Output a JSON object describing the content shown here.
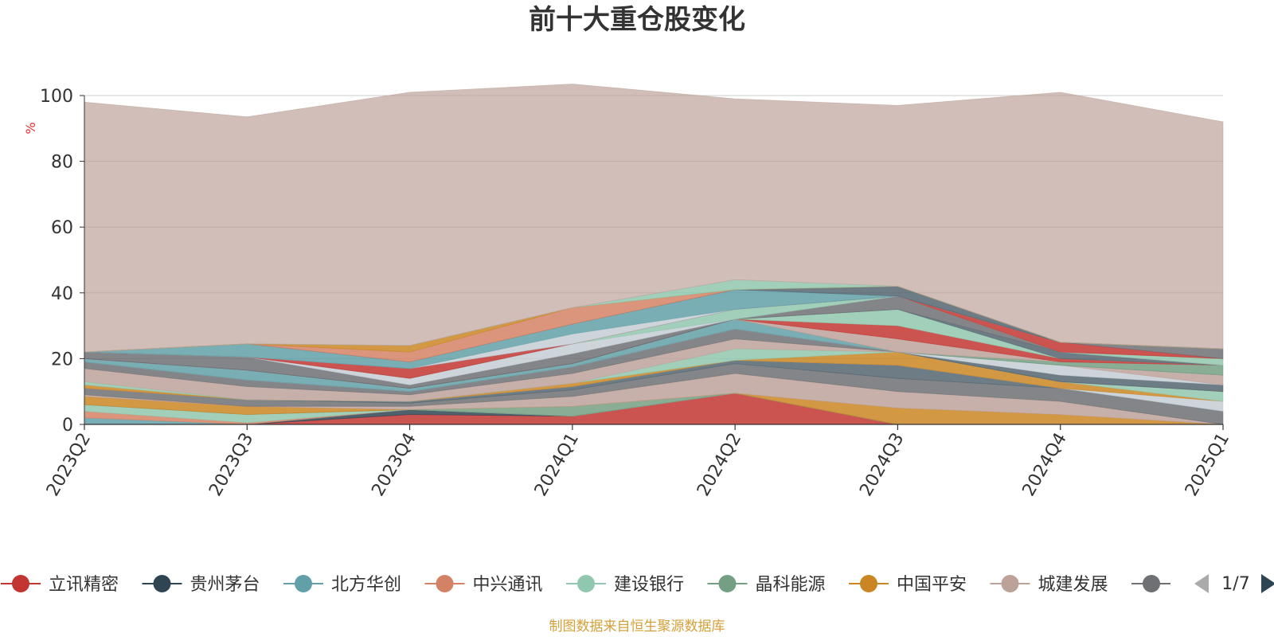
{
  "chart_data": {
    "type": "area",
    "stacked": true,
    "title": "前十大重仓股变化",
    "ylabel": "%",
    "ylim": [
      0,
      100
    ],
    "yticks": [
      0,
      20,
      40,
      60,
      80,
      100
    ],
    "categories": [
      "2023Q2",
      "2023Q3",
      "2023Q4",
      "2024Q1",
      "2024Q2",
      "2024Q3",
      "2024Q4",
      "2025Q1"
    ],
    "grid": true,
    "legend_position": "bottom",
    "series": [
      {
        "name": "立讯精密",
        "color": "#c23531",
        "values": [
          0,
          0,
          3,
          2.5,
          9.5,
          0,
          0,
          0
        ]
      },
      {
        "name": "贵州茅台",
        "color": "#2f4554",
        "values": [
          0,
          0,
          1.5,
          0,
          0,
          0,
          0,
          0
        ]
      },
      {
        "name": "北方华创",
        "color": "#61a0a8",
        "values": [
          2,
          0,
          0,
          0,
          0,
          0,
          0,
          0
        ]
      },
      {
        "name": "中兴通讯",
        "color": "#d48265",
        "values": [
          2,
          0.5,
          0,
          0,
          0,
          0,
          0,
          0
        ]
      },
      {
        "name": "建设银行",
        "color": "#91c7ae",
        "values": [
          2,
          2.5,
          0,
          0,
          0,
          0,
          0,
          0
        ]
      },
      {
        "name": "晶科能源",
        "color": "#749f83",
        "values": [
          0,
          0,
          0,
          3,
          0,
          0,
          0,
          0
        ]
      },
      {
        "name": "中国平安",
        "color": "#ca8622",
        "values": [
          2.5,
          2.5,
          0,
          0,
          0,
          5,
          3,
          0
        ]
      },
      {
        "name": "城建发展",
        "color": "#bda29a",
        "values": [
          0.5,
          0,
          1,
          3,
          6,
          5,
          4,
          0
        ]
      },
      {
        "name": "",
        "color": "#6e7074",
        "values": [
          2,
          2,
          1,
          2,
          3,
          4,
          4,
          4
        ]
      },
      {
        "name": "",
        "color": "#546570",
        "values": [
          0,
          0,
          0.5,
          1,
          1,
          4,
          0,
          0
        ]
      },
      {
        "name": "",
        "color": "#c4ccd3",
        "values": [
          0,
          0,
          0,
          0,
          0,
          0,
          0,
          3
        ]
      },
      {
        "name": "",
        "color": "#ca8622",
        "values": [
          1,
          0,
          0,
          1,
          0,
          4,
          2,
          0
        ]
      },
      {
        "name": "",
        "color": "#91c7ae",
        "values": [
          1,
          0,
          0,
          0,
          3.5,
          0,
          0,
          3
        ]
      },
      {
        "name": "",
        "color": "#bda29a",
        "values": [
          4,
          4,
          2,
          3,
          3,
          0,
          0,
          0
        ]
      },
      {
        "name": "",
        "color": "#6e7074",
        "values": [
          2,
          2,
          1,
          2,
          3,
          0,
          0,
          0
        ]
      },
      {
        "name": "",
        "color": "#546570",
        "values": [
          0,
          0,
          0,
          0,
          0,
          0,
          2,
          2
        ]
      },
      {
        "name": "",
        "color": "#c4ccd3",
        "values": [
          0,
          0,
          0,
          0,
          0,
          0,
          3,
          0
        ]
      },
      {
        "name": "",
        "color": "#bda29a",
        "values": [
          0,
          0,
          0,
          0,
          0,
          0,
          0,
          3
        ]
      },
      {
        "name": "",
        "color": "#61a0a8",
        "values": [
          1,
          3,
          1,
          1,
          3,
          0,
          0,
          0
        ]
      },
      {
        "name": "",
        "color": "#749f83",
        "values": [
          0,
          0,
          0,
          0,
          0,
          0,
          1,
          3
        ]
      },
      {
        "name": "",
        "color": "#bda29a",
        "values": [
          0,
          0,
          0,
          0,
          0,
          4,
          0,
          0
        ]
      },
      {
        "name": "",
        "color": "#c23531",
        "values": [
          0,
          0,
          0,
          0,
          0,
          4,
          1,
          0
        ]
      },
      {
        "name": "",
        "color": "#91c7ae",
        "values": [
          0,
          0,
          0,
          0,
          0,
          5,
          0,
          0
        ]
      },
      {
        "name": "",
        "color": "#546570",
        "values": [
          0,
          0,
          0,
          0,
          0,
          0,
          2,
          0
        ]
      },
      {
        "name": "",
        "color": "#6e7074",
        "values": [
          2,
          4,
          1,
          3,
          0,
          4,
          0,
          0
        ]
      },
      {
        "name": "",
        "color": "#c4ccd3",
        "values": [
          0,
          0,
          2,
          3,
          0,
          0,
          0,
          0
        ]
      },
      {
        "name": "",
        "color": "#91c7ae",
        "values": [
          0,
          0,
          0,
          0,
          3,
          0,
          0,
          2
        ]
      },
      {
        "name": "",
        "color": "#c23531",
        "values": [
          0,
          0,
          3,
          0,
          0,
          0,
          3,
          0
        ]
      },
      {
        "name": "",
        "color": "#6e7074",
        "values": [
          0,
          0,
          0,
          0,
          0,
          0,
          0,
          3
        ]
      },
      {
        "name": "",
        "color": "#c4ccd3",
        "values": [
          0,
          0,
          0,
          3,
          0,
          0,
          0,
          0
        ]
      },
      {
        "name": "",
        "color": "#61a0a8",
        "values": [
          0,
          4,
          2,
          3,
          6,
          0,
          0,
          0
        ]
      },
      {
        "name": "",
        "color": "#546570",
        "values": [
          0,
          0,
          0,
          0,
          0,
          3,
          0,
          0
        ]
      },
      {
        "name": "",
        "color": "#d48265",
        "values": [
          0,
          0,
          3,
          5,
          0,
          0,
          0,
          0
        ]
      },
      {
        "name": "",
        "color": "#ca8622",
        "values": [
          0,
          0,
          2,
          0,
          0,
          0,
          0,
          0
        ]
      },
      {
        "name": "",
        "color": "#91c7ae",
        "values": [
          0,
          0,
          0,
          0,
          3,
          0,
          0,
          0
        ]
      },
      {
        "name": "",
        "color": "#bda29a",
        "values": [
          76,
          69,
          77,
          68,
          55,
          55,
          76,
          69
        ]
      }
    ]
  },
  "legend": {
    "items": [
      {
        "label": "立讯精密",
        "color": "#c23531"
      },
      {
        "label": "贵州茅台",
        "color": "#2f4554"
      },
      {
        "label": "北方华创",
        "color": "#61a0a8"
      },
      {
        "label": "中兴通讯",
        "color": "#d48265"
      },
      {
        "label": "建设银行",
        "color": "#91c7ae"
      },
      {
        "label": "晶科能源",
        "color": "#749f83"
      },
      {
        "label": "中国平安",
        "color": "#ca8622"
      },
      {
        "label": "城建发展",
        "color": "#bda29a"
      },
      {
        "label": "",
        "color": "#6e7074"
      }
    ],
    "page_indicator": "1/7",
    "prev_icon": "triangle-left-icon",
    "next_icon": "triangle-right-icon"
  },
  "footer": {
    "source": "制图数据来自恒生聚源数据库"
  }
}
